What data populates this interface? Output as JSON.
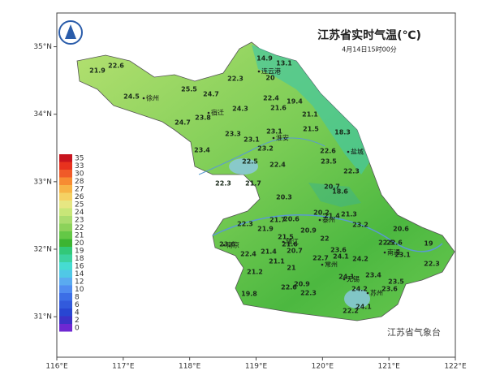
{
  "header": {
    "title": "江苏省实时气温(℃)",
    "subtitle": "4月14日15时00分"
  },
  "credit": "江苏省气象台",
  "axes": {
    "xlim": [
      116,
      122
    ],
    "xticks": [
      {
        "value": 116,
        "label": "116°E"
      },
      {
        "value": 117,
        "label": "117°E"
      },
      {
        "value": 118,
        "label": "118°E"
      },
      {
        "value": 119,
        "label": "119°E"
      },
      {
        "value": 120,
        "label": "120°E"
      },
      {
        "value": 121,
        "label": "121°E"
      },
      {
        "value": 122,
        "label": "122°E"
      }
    ],
    "ylim": [
      30.4,
      35.5
    ],
    "yticks": [
      {
        "value": 31,
        "label": "31°N"
      },
      {
        "value": 32,
        "label": "32°N"
      },
      {
        "value": 33,
        "label": "33°N"
      },
      {
        "value": 34,
        "label": "34°N"
      },
      {
        "value": 35,
        "label": "35°N"
      }
    ]
  },
  "legend": {
    "levels": [
      35,
      33,
      30,
      28,
      27,
      26,
      25,
      24,
      23,
      22,
      21,
      20,
      19,
      18,
      16,
      14,
      12,
      10,
      8,
      6,
      4,
      2,
      0
    ],
    "colors": [
      "#c8141e",
      "#e8321e",
      "#f05a28",
      "#f78c32",
      "#f7b446",
      "#f5d264",
      "#e6e682",
      "#c8e678",
      "#aadc6e",
      "#8cd25a",
      "#64c846",
      "#3cb432",
      "#32c878",
      "#3cd2a0",
      "#46dcd2",
      "#50c8e6",
      "#5aaaf0",
      "#508cf0",
      "#3c6ee6",
      "#325adc",
      "#2846d2",
      "#3c32c8",
      "#6e28d2"
    ]
  },
  "cities": [
    "徐州",
    "连云港",
    "宿迁",
    "淮安",
    "盐城",
    "泰州",
    "南京",
    "镇江",
    "常州",
    "无锡",
    "苏州",
    "南通"
  ],
  "stations": [
    21.9,
    22.6,
    24.5,
    25.5,
    24.7,
    22.3,
    24.7,
    23.8,
    24.3,
    14.9,
    13.1,
    20.0,
    22.4,
    19.4,
    21.6,
    21.1,
    23.3,
    23.1,
    21.5,
    18.3,
    23.1,
    23.2,
    23.4,
    22.6,
    23.5,
    22.5,
    22.4,
    22.3,
    21.7,
    22.3,
    20.7,
    18.6,
    20.3,
    20.2,
    21.4,
    21.3,
    20.6,
    21.7,
    22.3,
    21.9,
    23.2,
    20.6,
    20.9,
    21.5,
    22.0,
    22.5,
    22.6,
    19.0,
    23.6,
    21.6,
    21.4,
    20.7,
    23.6,
    24.1,
    22.7,
    24.2,
    23.1,
    22.4,
    22.3,
    21.1,
    21.0,
    21.2,
    24.1,
    23.4,
    23.5,
    20.9,
    22.6,
    24.2,
    23.6,
    22.3,
    19.8,
    22.2,
    24.1
  ]
}
